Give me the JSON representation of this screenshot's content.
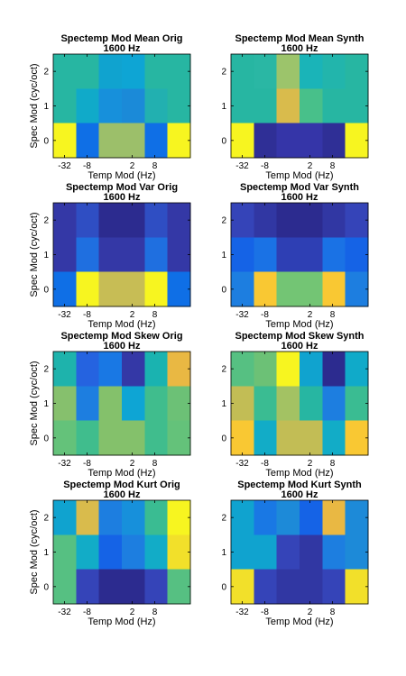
{
  "figure": {
    "background": "#ffffff"
  },
  "chart_data": [
    {
      "type": "heatmap",
      "title": [
        "Spectemp Mod Mean Orig",
        "1600 Hz"
      ],
      "xlabel": "Temp Mod (Hz)",
      "ylabel": "Spec Mod (cyc/oct)",
      "x_tick_labels": [
        "-32",
        "-8",
        "2",
        "8"
      ],
      "y_tick_labels": [
        "0",
        "1",
        "2"
      ],
      "rows_top_to_bottom": [
        [
          "#27b6a2",
          "#27b6a2",
          "#10a3cf",
          "#0ea5d4",
          "#27b6a2",
          "#27b6a2"
        ],
        [
          "#27b6a2",
          "#10aac9",
          "#1790db",
          "#1b8ad8",
          "#22b0b0",
          "#27b6a2"
        ],
        [
          "#f7f520",
          "#0f6fe6",
          "#9cbf6a",
          "#9cbf6a",
          "#0f6fe6",
          "#f7f520"
        ]
      ]
    },
    {
      "type": "heatmap",
      "title": [
        "Spectemp Mod Mean Synth",
        "1600 Hz"
      ],
      "xlabel": "Temp Mod (Hz)",
      "ylabel": "",
      "x_tick_labels": [
        "-32",
        "-8",
        "2",
        "8"
      ],
      "y_tick_labels": [
        "0",
        "1",
        "2"
      ],
      "rows_top_to_bottom": [
        [
          "#27b6a2",
          "#2ab7a4",
          "#9cc46b",
          "#1ab4b8",
          "#22b5ac",
          "#27b6a2"
        ],
        [
          "#27b6a2",
          "#27b6a2",
          "#d9bb4c",
          "#48c08a",
          "#27b6a2",
          "#27b6a2"
        ],
        [
          "#f7f520",
          "#2f2f96",
          "#3535a8",
          "#3535a8",
          "#2f2f96",
          "#f7f520"
        ]
      ]
    },
    {
      "type": "heatmap",
      "title": [
        "Spectemp Mod Var Orig",
        "1600 Hz"
      ],
      "xlabel": "Temp Mod (Hz)",
      "ylabel": "Spec Mod (cyc/oct)",
      "x_tick_labels": [
        "-32",
        "-8",
        "2",
        "8"
      ],
      "y_tick_labels": [
        "0",
        "1",
        "2"
      ],
      "rows_top_to_bottom": [
        [
          "#3438a6",
          "#2f4ec3",
          "#2c2b8f",
          "#2c2b8f",
          "#2f4ec3",
          "#3438a6"
        ],
        [
          "#3438a6",
          "#1f6fe0",
          "#3438a6",
          "#3438a6",
          "#1f6fe0",
          "#3438a6"
        ],
        [
          "#0f6fe6",
          "#f7f520",
          "#c7bd55",
          "#c7bd55",
          "#f7f520",
          "#0f6fe6"
        ]
      ]
    },
    {
      "type": "heatmap",
      "title": [
        "Spectemp Mod Var Synth",
        "1600 Hz"
      ],
      "xlabel": "Temp Mod (Hz)",
      "ylabel": "",
      "x_tick_labels": [
        "-32",
        "-8",
        "2",
        "8"
      ],
      "y_tick_labels": [
        "0",
        "1",
        "2"
      ],
      "rows_top_to_bottom": [
        [
          "#3544b8",
          "#3137a3",
          "#2c2b8f",
          "#2c2b8f",
          "#3137a3",
          "#3544b8"
        ],
        [
          "#1563e6",
          "#1a72e5",
          "#2e3fb4",
          "#2e3fb4",
          "#1a72e5",
          "#1563e6"
        ],
        [
          "#1d7ee0",
          "#f9c833",
          "#73c574",
          "#73c574",
          "#f9c833",
          "#1d7ee0"
        ]
      ]
    },
    {
      "type": "heatmap",
      "title": [
        "Spectemp Mod Skew Orig",
        "1600 Hz"
      ],
      "xlabel": "Temp Mod (Hz)",
      "ylabel": "Spec Mod (cyc/oct)",
      "x_tick_labels": [
        "-32",
        "-8",
        "2",
        "8"
      ],
      "y_tick_labels": [
        "0",
        "1",
        "2"
      ],
      "rows_top_to_bottom": [
        [
          "#1eb3ac",
          "#2563e0",
          "#1978e4",
          "#3438a6",
          "#1ab3b0",
          "#e9b843"
        ],
        [
          "#86c06d",
          "#1d7ee0",
          "#84c16b",
          "#0ea5d4",
          "#40bd8d",
          "#6cc176"
        ],
        [
          "#64c27a",
          "#40bd8d",
          "#84c16b",
          "#84c16b",
          "#40bd8d",
          "#64c27a"
        ]
      ]
    },
    {
      "type": "heatmap",
      "title": [
        "Spectemp Mod Skew Synth",
        "1600 Hz"
      ],
      "xlabel": "Temp Mod (Hz)",
      "ylabel": "",
      "x_tick_labels": [
        "-32",
        "-8",
        "2",
        "8"
      ],
      "y_tick_labels": [
        "0",
        "1",
        "2"
      ],
      "rows_top_to_bottom": [
        [
          "#56c082",
          "#6cc176",
          "#f7f520",
          "#10a3cf",
          "#2c2b8f",
          "#10aac9"
        ],
        [
          "#c2bd55",
          "#3abc92",
          "#a3c263",
          "#27b6a2",
          "#1d7ee0",
          "#3abc92"
        ],
        [
          "#f9c833",
          "#12acc7",
          "#c2bd55",
          "#c2bd55",
          "#12acc7",
          "#f9c833"
        ]
      ]
    },
    {
      "type": "heatmap",
      "title": [
        "Spectemp Mod Kurt Orig",
        "1600 Hz"
      ],
      "xlabel": "Temp Mod (Hz)",
      "ylabel": "Spec Mod (cyc/oct)",
      "x_tick_labels": [
        "-32",
        "-8",
        "2",
        "8"
      ],
      "y_tick_labels": [
        "0",
        "1",
        "2"
      ],
      "rows_top_to_bottom": [
        [
          "#10a3cf",
          "#d9bb4c",
          "#1d7ee0",
          "#1790db",
          "#3abc92",
          "#f7f520"
        ],
        [
          "#56c082",
          "#12acc7",
          "#1563e6",
          "#1d7ee0",
          "#12acc7",
          "#f2e02a"
        ],
        [
          "#56c082",
          "#3544b8",
          "#2c2b8f",
          "#2c2b8f",
          "#3544b8",
          "#56c082"
        ]
      ]
    },
    {
      "type": "heatmap",
      "title": [
        "Spectemp Mod Kurt Synth",
        "1600 Hz"
      ],
      "xlabel": "Temp Mod (Hz)",
      "ylabel": "",
      "x_tick_labels": [
        "-32",
        "-8",
        "2",
        "8"
      ],
      "y_tick_labels": [
        "0",
        "1",
        "2"
      ],
      "rows_top_to_bottom": [
        [
          "#10a3cf",
          "#1978e4",
          "#1d8ad8",
          "#1563e6",
          "#e9b843",
          "#1d8ad8"
        ],
        [
          "#10a3cf",
          "#10a3cf",
          "#3544b8",
          "#3137a3",
          "#1d7ee0",
          "#1d8ad8"
        ],
        [
          "#f2e02a",
          "#3544b8",
          "#3137a3",
          "#3137a3",
          "#3544b8",
          "#f2e02a"
        ]
      ]
    }
  ]
}
